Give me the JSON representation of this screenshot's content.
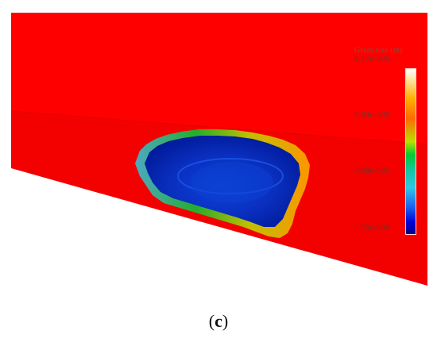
{
  "legend": {
    "title": "Grain size (m)",
    "ticks": [
      "8.17e-005",
      "5.63e-005",
      "3.09e-005",
      "5.50e-006"
    ]
  },
  "caption": {
    "open": "(",
    "letter": "c",
    "close": ")"
  },
  "colors": {
    "background_field": "#ff0000",
    "melt_pool_deep": "#001a99",
    "melt_pool_core": "#0a44dd"
  }
}
